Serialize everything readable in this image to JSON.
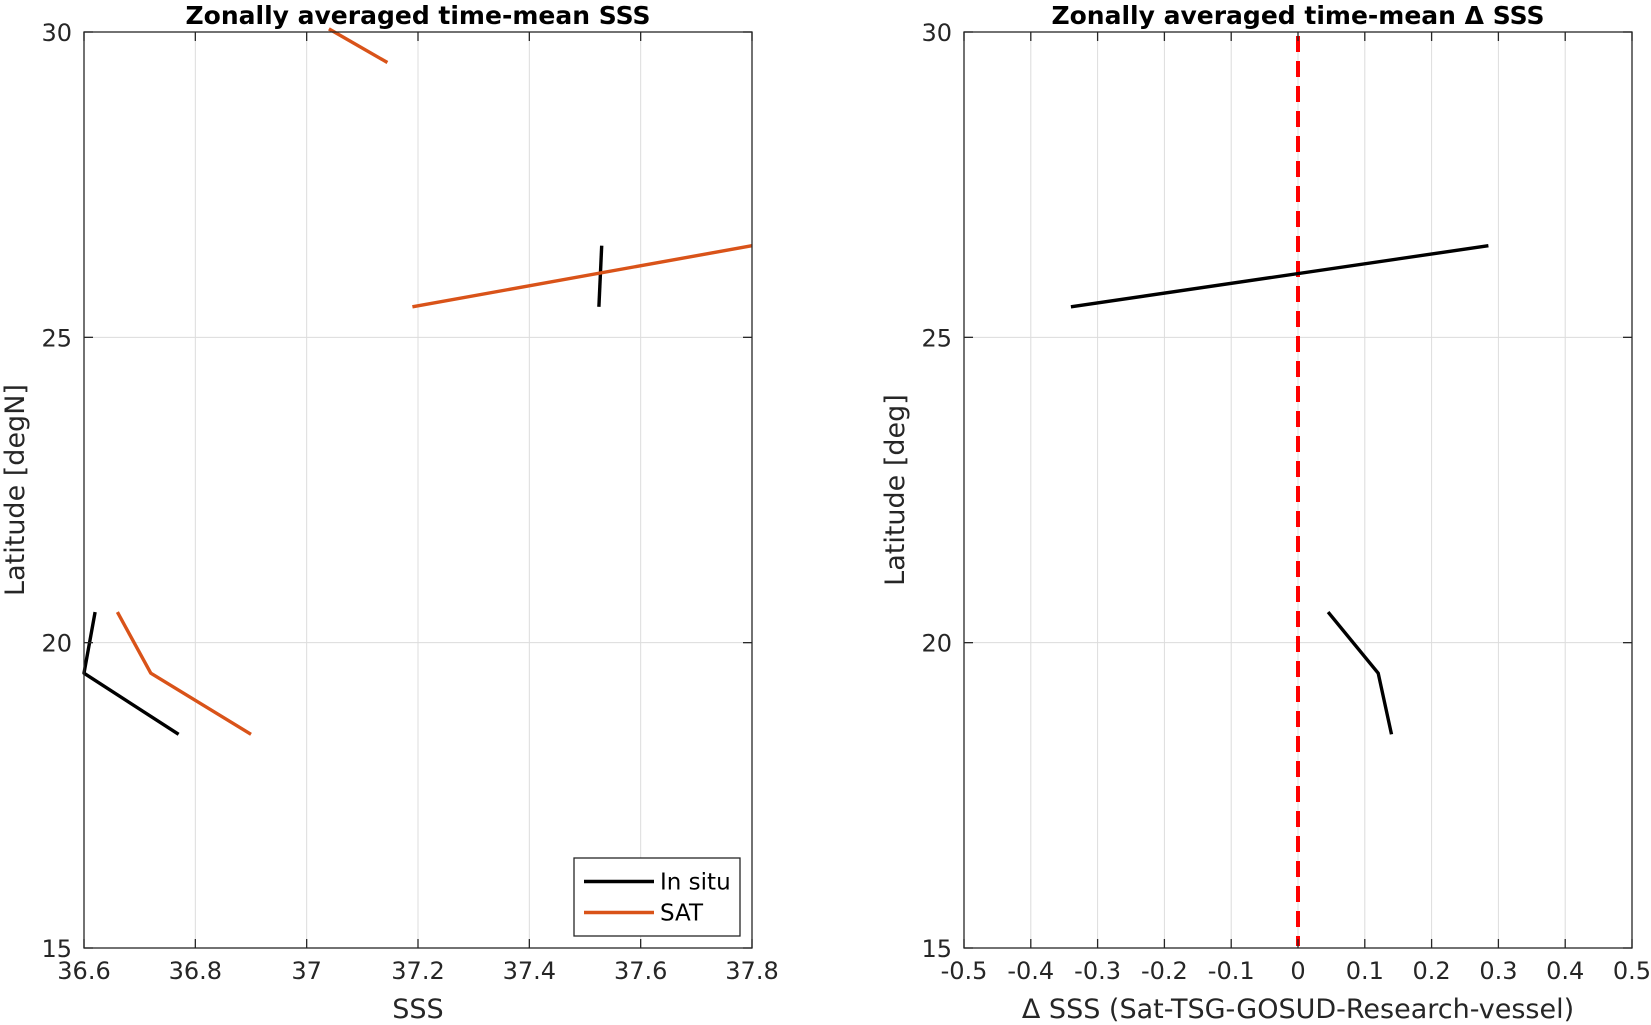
{
  "chart_data": [
    {
      "type": "line",
      "title": "Zonally averaged time-mean SSS",
      "xlabel": "SSS",
      "ylabel": "Latitude [degN]",
      "xlim": [
        36.6,
        37.8
      ],
      "ylim": [
        15,
        30
      ],
      "xticks": [
        "36.6",
        "36.8",
        "37",
        "37.2",
        "37.4",
        "37.6",
        "37.8"
      ],
      "xtick_values": [
        36.6,
        36.8,
        37.0,
        37.2,
        37.4,
        37.6,
        37.8
      ],
      "yticks": [
        "15",
        "20",
        "25",
        "30"
      ],
      "ytick_values": [
        15,
        20,
        25,
        30
      ],
      "grid": true,
      "legend_position": "bottom-right",
      "series": [
        {
          "name": "In situ",
          "color": "#000000",
          "segments": [
            [
              [
                36.77,
                18.5
              ],
              [
                36.6,
                19.5
              ],
              [
                36.62,
                20.5
              ]
            ],
            [
              [
                37.525,
                25.5
              ],
              [
                37.53,
                26.5
              ]
            ]
          ]
        },
        {
          "name": "SAT",
          "color": "#d95319",
          "segments": [
            [
              [
                36.9,
                18.5
              ],
              [
                36.72,
                19.5
              ],
              [
                36.66,
                20.5
              ]
            ],
            [
              [
                37.19,
                25.5
              ],
              [
                37.8,
                26.5
              ]
            ],
            [
              [
                37.145,
                29.5
              ],
              [
                37.04,
                30.05
              ]
            ]
          ]
        }
      ]
    },
    {
      "type": "line",
      "title": "Zonally averaged time-mean Δ SSS",
      "xlabel": "Δ SSS (Sat-TSG-GOSUD-Research-vessel)",
      "ylabel": "Latitude [deg]",
      "xlim": [
        -0.5,
        0.5
      ],
      "ylim": [
        15,
        30
      ],
      "xticks": [
        "-0.5",
        "-0.4",
        "-0.3",
        "-0.2",
        "-0.1",
        "0",
        "0.1",
        "0.2",
        "0.3",
        "0.4",
        "0.5"
      ],
      "xtick_values": [
        -0.5,
        -0.4,
        -0.3,
        -0.2,
        -0.1,
        0,
        0.1,
        0.2,
        0.3,
        0.4,
        0.5
      ],
      "yticks": [
        "15",
        "20",
        "25",
        "30"
      ],
      "ytick_values": [
        15,
        20,
        25,
        30
      ],
      "grid": true,
      "series": [
        {
          "color": "#000000",
          "segments": [
            [
              [
                0.14,
                18.5
              ],
              [
                0.12,
                19.5
              ],
              [
                0.045,
                20.5
              ]
            ],
            [
              [
                -0.34,
                25.5
              ],
              [
                0.285,
                26.5
              ]
            ]
          ]
        }
      ],
      "reference_line": {
        "x": 0,
        "color": "#ff0000",
        "style": "dashed"
      }
    }
  ]
}
